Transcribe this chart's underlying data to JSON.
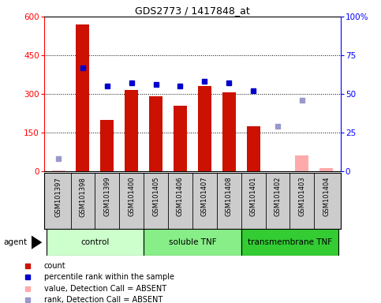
{
  "title": "GDS2773 / 1417848_at",
  "samples": [
    "GSM101397",
    "GSM101398",
    "GSM101399",
    "GSM101400",
    "GSM101405",
    "GSM101406",
    "GSM101407",
    "GSM101408",
    "GSM101401",
    "GSM101402",
    "GSM101403",
    "GSM101404"
  ],
  "bar_values": [
    null,
    570,
    200,
    315,
    290,
    255,
    330,
    305,
    175,
    null,
    null,
    null
  ],
  "bar_absent_values": [
    4,
    null,
    null,
    null,
    null,
    null,
    null,
    null,
    null,
    null,
    60,
    12
  ],
  "rank_values_pct": [
    null,
    67,
    55,
    57,
    56,
    55,
    58,
    57,
    52,
    null,
    null,
    null
  ],
  "rank_absent_values_pct": [
    8,
    null,
    null,
    null,
    null,
    null,
    null,
    null,
    null,
    29,
    46,
    null
  ],
  "groups": [
    {
      "label": "control",
      "start": 0,
      "end": 3,
      "color": "#ccffcc"
    },
    {
      "label": "soluble TNF",
      "start": 4,
      "end": 7,
      "color": "#88ee88"
    },
    {
      "label": "transmembrane TNF",
      "start": 8,
      "end": 11,
      "color": "#33cc33"
    }
  ],
  "bar_color": "#cc1100",
  "rank_color": "#0000cc",
  "absent_bar_color": "#ffaaaa",
  "absent_rank_color": "#9999cc",
  "ylim_left": [
    0,
    600
  ],
  "ylim_right": [
    0,
    100
  ],
  "yticks_left": [
    0,
    150,
    300,
    450,
    600
  ],
  "yticks_right": [
    0,
    25,
    50,
    75,
    100
  ],
  "yticklabels_right": [
    "0",
    "25",
    "50",
    "75",
    "100%"
  ],
  "bg_color": "#cccccc",
  "plot_bg": "#ffffff",
  "agent_label": "agent"
}
